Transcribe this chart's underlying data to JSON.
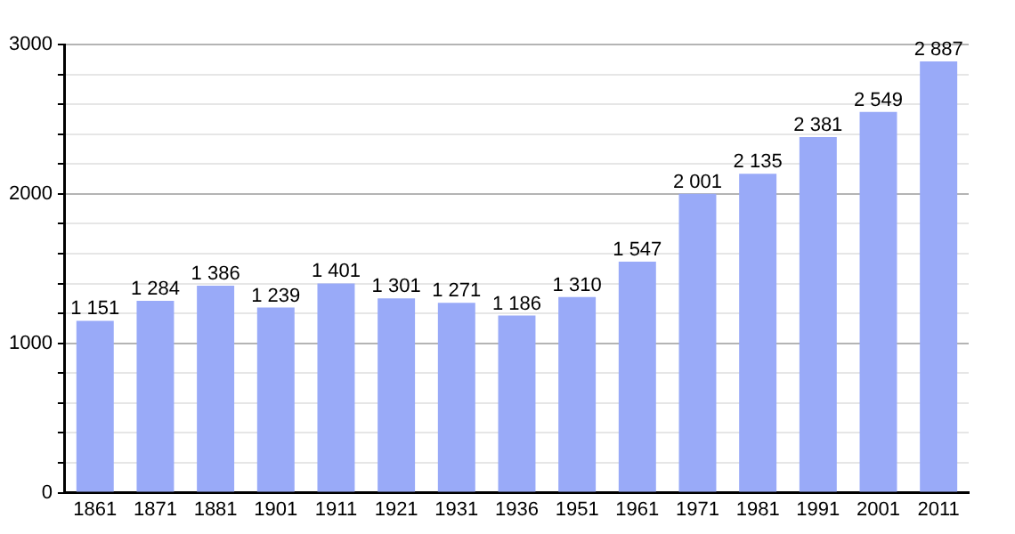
{
  "chart_data": {
    "type": "bar",
    "categories": [
      "1861",
      "1871",
      "1881",
      "1901",
      "1911",
      "1921",
      "1931",
      "1936",
      "1951",
      "1961",
      "1971",
      "1981",
      "1991",
      "2001",
      "2011"
    ],
    "values": [
      1151,
      1284,
      1386,
      1239,
      1401,
      1301,
      1271,
      1186,
      1310,
      1547,
      2001,
      2135,
      2381,
      2549,
      2887
    ],
    "value_labels": [
      "1 151",
      "1 284",
      "1 386",
      "1 239",
      "1 401",
      "1 301",
      "1 271",
      "1 186",
      "1 310",
      "1 547",
      "2 001",
      "2 135",
      "2 381",
      "2 549",
      "2 887"
    ],
    "color": "#99aaf8",
    "ylim": [
      0,
      3000
    ],
    "yticks": [
      0,
      {
        "value": 200,
        "label": null
      },
      {
        "value": 400,
        "label": null
      },
      {
        "value": 600,
        "label": null
      },
      {
        "value": 800,
        "label": null
      },
      1000,
      {
        "value": 1200,
        "label": null
      },
      {
        "value": 1400,
        "label": null
      },
      {
        "value": 1600,
        "label": null
      },
      {
        "value": 1800,
        "label": null
      },
      2000,
      {
        "value": 2200,
        "label": null
      },
      {
        "value": 2400,
        "label": null
      },
      {
        "value": 2600,
        "label": null
      },
      {
        "value": 2800,
        "label": null
      },
      3000
    ],
    "grid": true,
    "legend": false
  }
}
